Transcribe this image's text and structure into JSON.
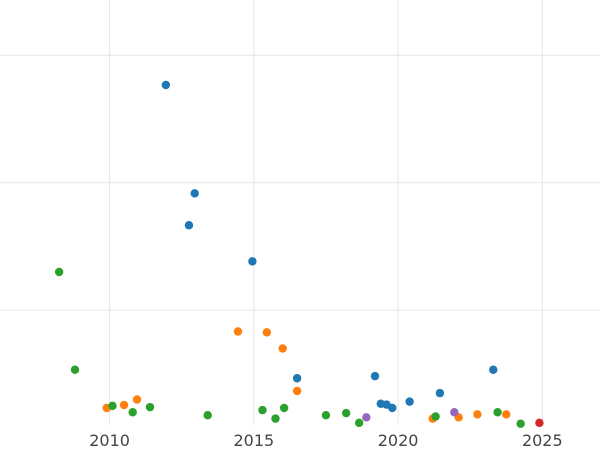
{
  "chart_data": {
    "type": "scatter",
    "title": "",
    "xlabel": "",
    "ylabel": "",
    "xlim": [
      2006.2,
      2027
    ],
    "ylim": [
      0,
      100
    ],
    "x_ticks": [
      2010,
      2015,
      2020,
      2025
    ],
    "x_tick_labels": [
      "2010",
      "2015",
      "2020",
      "2025"
    ],
    "y_ticks": [
      27,
      57,
      87
    ],
    "y_tick_labels": [
      "",
      "",
      ""
    ],
    "grid": true,
    "legend": "none",
    "colors": {
      "blue": "#1f77b4",
      "orange": "#ff7f0e",
      "green": "#2ca02c",
      "purple": "#9467bd",
      "red": "#d62728"
    },
    "series": [
      {
        "color": "#1f77b4",
        "points": [
          {
            "x": 2011.95,
            "y": 80.0
          },
          {
            "x": 2012.95,
            "y": 54.5
          },
          {
            "x": 2012.75,
            "y": 47.0
          },
          {
            "x": 2014.95,
            "y": 38.5
          },
          {
            "x": 2016.5,
            "y": 11.0
          },
          {
            "x": 2019.2,
            "y": 11.5
          },
          {
            "x": 2019.4,
            "y": 5.0
          },
          {
            "x": 2019.6,
            "y": 4.8
          },
          {
            "x": 2019.8,
            "y": 4.0
          },
          {
            "x": 2020.4,
            "y": 5.5
          },
          {
            "x": 2021.45,
            "y": 7.5
          },
          {
            "x": 2023.3,
            "y": 13.0
          }
        ]
      },
      {
        "color": "#ff7f0e",
        "points": [
          {
            "x": 2009.9,
            "y": 4.0
          },
          {
            "x": 2010.5,
            "y": 4.7
          },
          {
            "x": 2010.95,
            "y": 6.0
          },
          {
            "x": 2014.45,
            "y": 22.0
          },
          {
            "x": 2015.45,
            "y": 21.8
          },
          {
            "x": 2016.0,
            "y": 18.0
          },
          {
            "x": 2016.5,
            "y": 8.0
          },
          {
            "x": 2021.2,
            "y": 1.5
          },
          {
            "x": 2022.1,
            "y": 1.8
          },
          {
            "x": 2022.75,
            "y": 2.5
          },
          {
            "x": 2023.75,
            "y": 2.5
          }
        ]
      },
      {
        "color": "#2ca02c",
        "points": [
          {
            "x": 2008.25,
            "y": 36.0
          },
          {
            "x": 2008.8,
            "y": 13.0
          },
          {
            "x": 2010.1,
            "y": 4.5
          },
          {
            "x": 2010.8,
            "y": 3.0
          },
          {
            "x": 2011.4,
            "y": 4.2
          },
          {
            "x": 2013.4,
            "y": 2.3
          },
          {
            "x": 2015.3,
            "y": 3.5
          },
          {
            "x": 2015.75,
            "y": 1.5
          },
          {
            "x": 2016.05,
            "y": 4.0
          },
          {
            "x": 2017.5,
            "y": 2.3
          },
          {
            "x": 2018.2,
            "y": 2.8
          },
          {
            "x": 2018.65,
            "y": 0.5
          },
          {
            "x": 2021.3,
            "y": 2.0
          },
          {
            "x": 2023.45,
            "y": 3.0
          },
          {
            "x": 2024.25,
            "y": 0.3
          }
        ]
      },
      {
        "color": "#9467bd",
        "points": [
          {
            "x": 2018.9,
            "y": 1.8
          },
          {
            "x": 2021.95,
            "y": 3.0
          }
        ]
      },
      {
        "color": "#d62728",
        "points": [
          {
            "x": 2024.9,
            "y": 0.5
          }
        ]
      }
    ]
  }
}
